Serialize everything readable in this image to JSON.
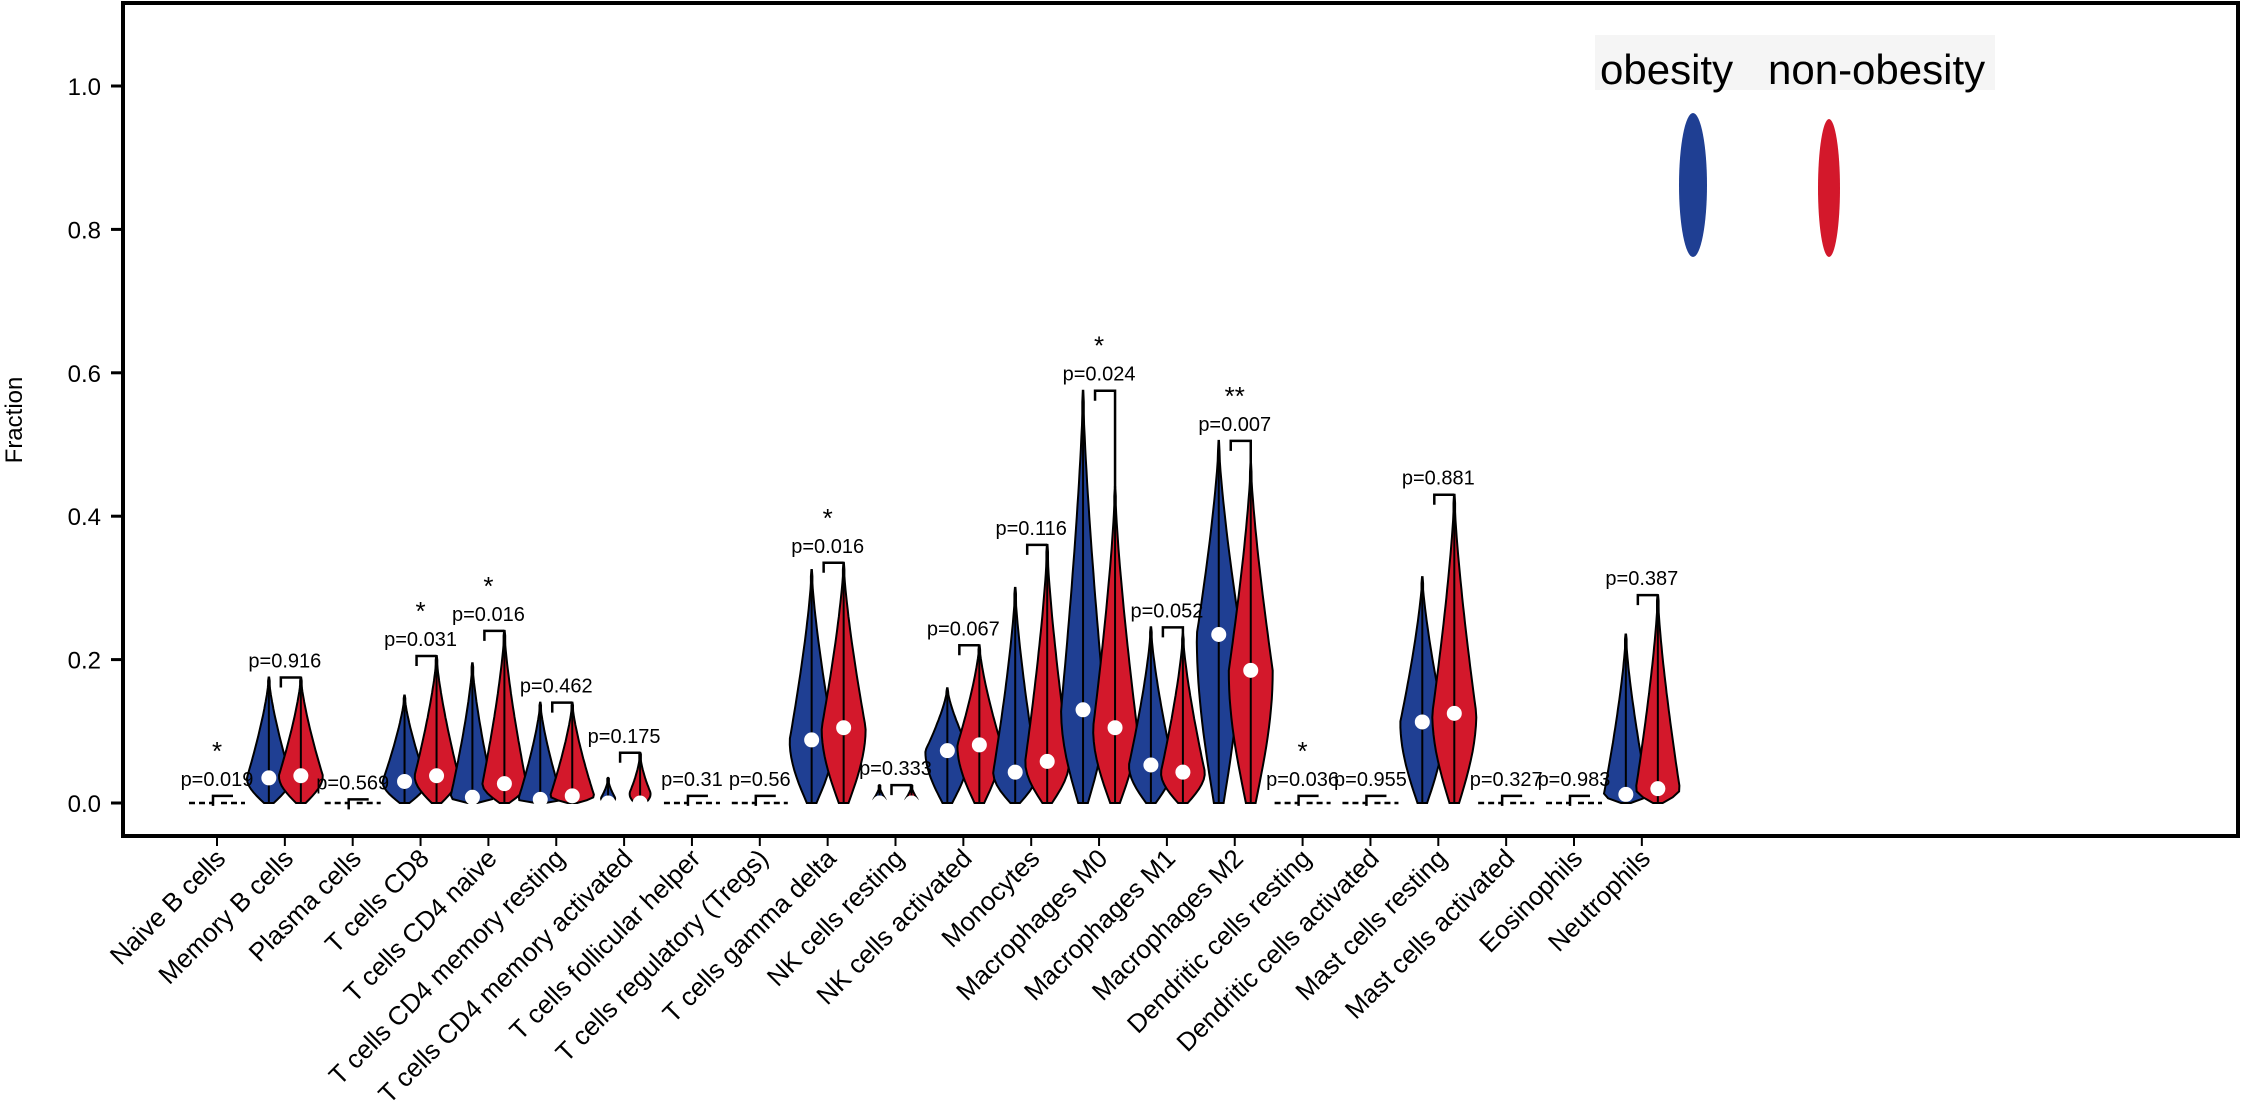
{
  "colors": {
    "obesity": "#1f3f93",
    "non_obesity": "#d3182b",
    "axis": "#000000"
  },
  "chart_data": {
    "type": "violin",
    "ylabel": "Fraction",
    "ylim": [
      0,
      1.1
    ],
    "yticks": [
      "0.0",
      "0.2",
      "0.4",
      "0.6",
      "0.8",
      "1.0"
    ],
    "legend": {
      "position": "top-right",
      "entries": [
        "obesity",
        "non-obesity"
      ]
    },
    "categories": [
      "Naive B cells",
      "Memory B cells",
      "Plasma cells",
      "T cells CD8",
      "T cells CD4 naive",
      "T cells CD4 memory resting",
      "T cells CD4 memory activated",
      "T cells follicular helper",
      "T cells regulatory (Tregs)",
      "T cells gamma delta",
      "NK cells resting",
      "NK cells activated",
      "Monocytes",
      "Macrophages M0",
      "Macrophages M1",
      "Macrophages M2",
      "Dendritic cells resting",
      "Dendritic cells activated",
      "Mast cells resting",
      "Mast cells activated",
      "Eosinophils",
      "Neutrophils"
    ],
    "p_values": [
      "p=0.019",
      "p=0.916",
      "p=0.569",
      "p=0.031",
      "p=0.016",
      "p=0.462",
      "p=0.175",
      "p=0.31",
      "p=0.56",
      "p=0.016",
      "p=0.333",
      "p=0.067",
      "p=0.116",
      "p=0.024",
      "p=0.052",
      "p=0.007",
      "p=0.036",
      "p=0.955",
      "p=0.881",
      "p=0.327",
      "p=0.983",
      "p=0.387"
    ],
    "significance": [
      "*",
      "",
      "",
      "*",
      "*",
      "",
      "",
      "",
      "",
      "*",
      "",
      "",
      "",
      "*",
      "",
      "**",
      "*",
      "",
      "",
      "",
      "",
      ""
    ],
    "series": [
      {
        "name": "obesity",
        "max": [
          0.01,
          0.175,
          0.005,
          0.15,
          0.195,
          0.14,
          0.035,
          0.01,
          0.01,
          0.325,
          0.025,
          0.16,
          0.3,
          0.575,
          0.245,
          0.505,
          0.01,
          0.01,
          0.315,
          0.01,
          0.01,
          0.235
        ],
        "median": [
          0,
          0.035,
          0,
          0.03,
          0.008,
          0.005,
          0,
          0,
          0,
          0.088,
          0,
          0.073,
          0.043,
          0.13,
          0.053,
          0.235,
          0,
          0,
          0.113,
          0,
          0,
          0.012
        ]
      },
      {
        "name": "non-obesity",
        "max": [
          0.01,
          0.175,
          0.005,
          0.205,
          0.24,
          0.14,
          0.07,
          0.01,
          0.01,
          0.335,
          0.025,
          0.22,
          0.36,
          0.44,
          0.235,
          0.475,
          0.01,
          0.01,
          0.43,
          0.01,
          0.01,
          0.29
        ],
        "median": [
          0,
          0.038,
          0,
          0.038,
          0.027,
          0.01,
          0,
          0,
          0,
          0.105,
          0,
          0.081,
          0.058,
          0.105,
          0.043,
          0.185,
          0,
          0,
          0.125,
          0,
          0,
          0.02
        ]
      }
    ]
  }
}
